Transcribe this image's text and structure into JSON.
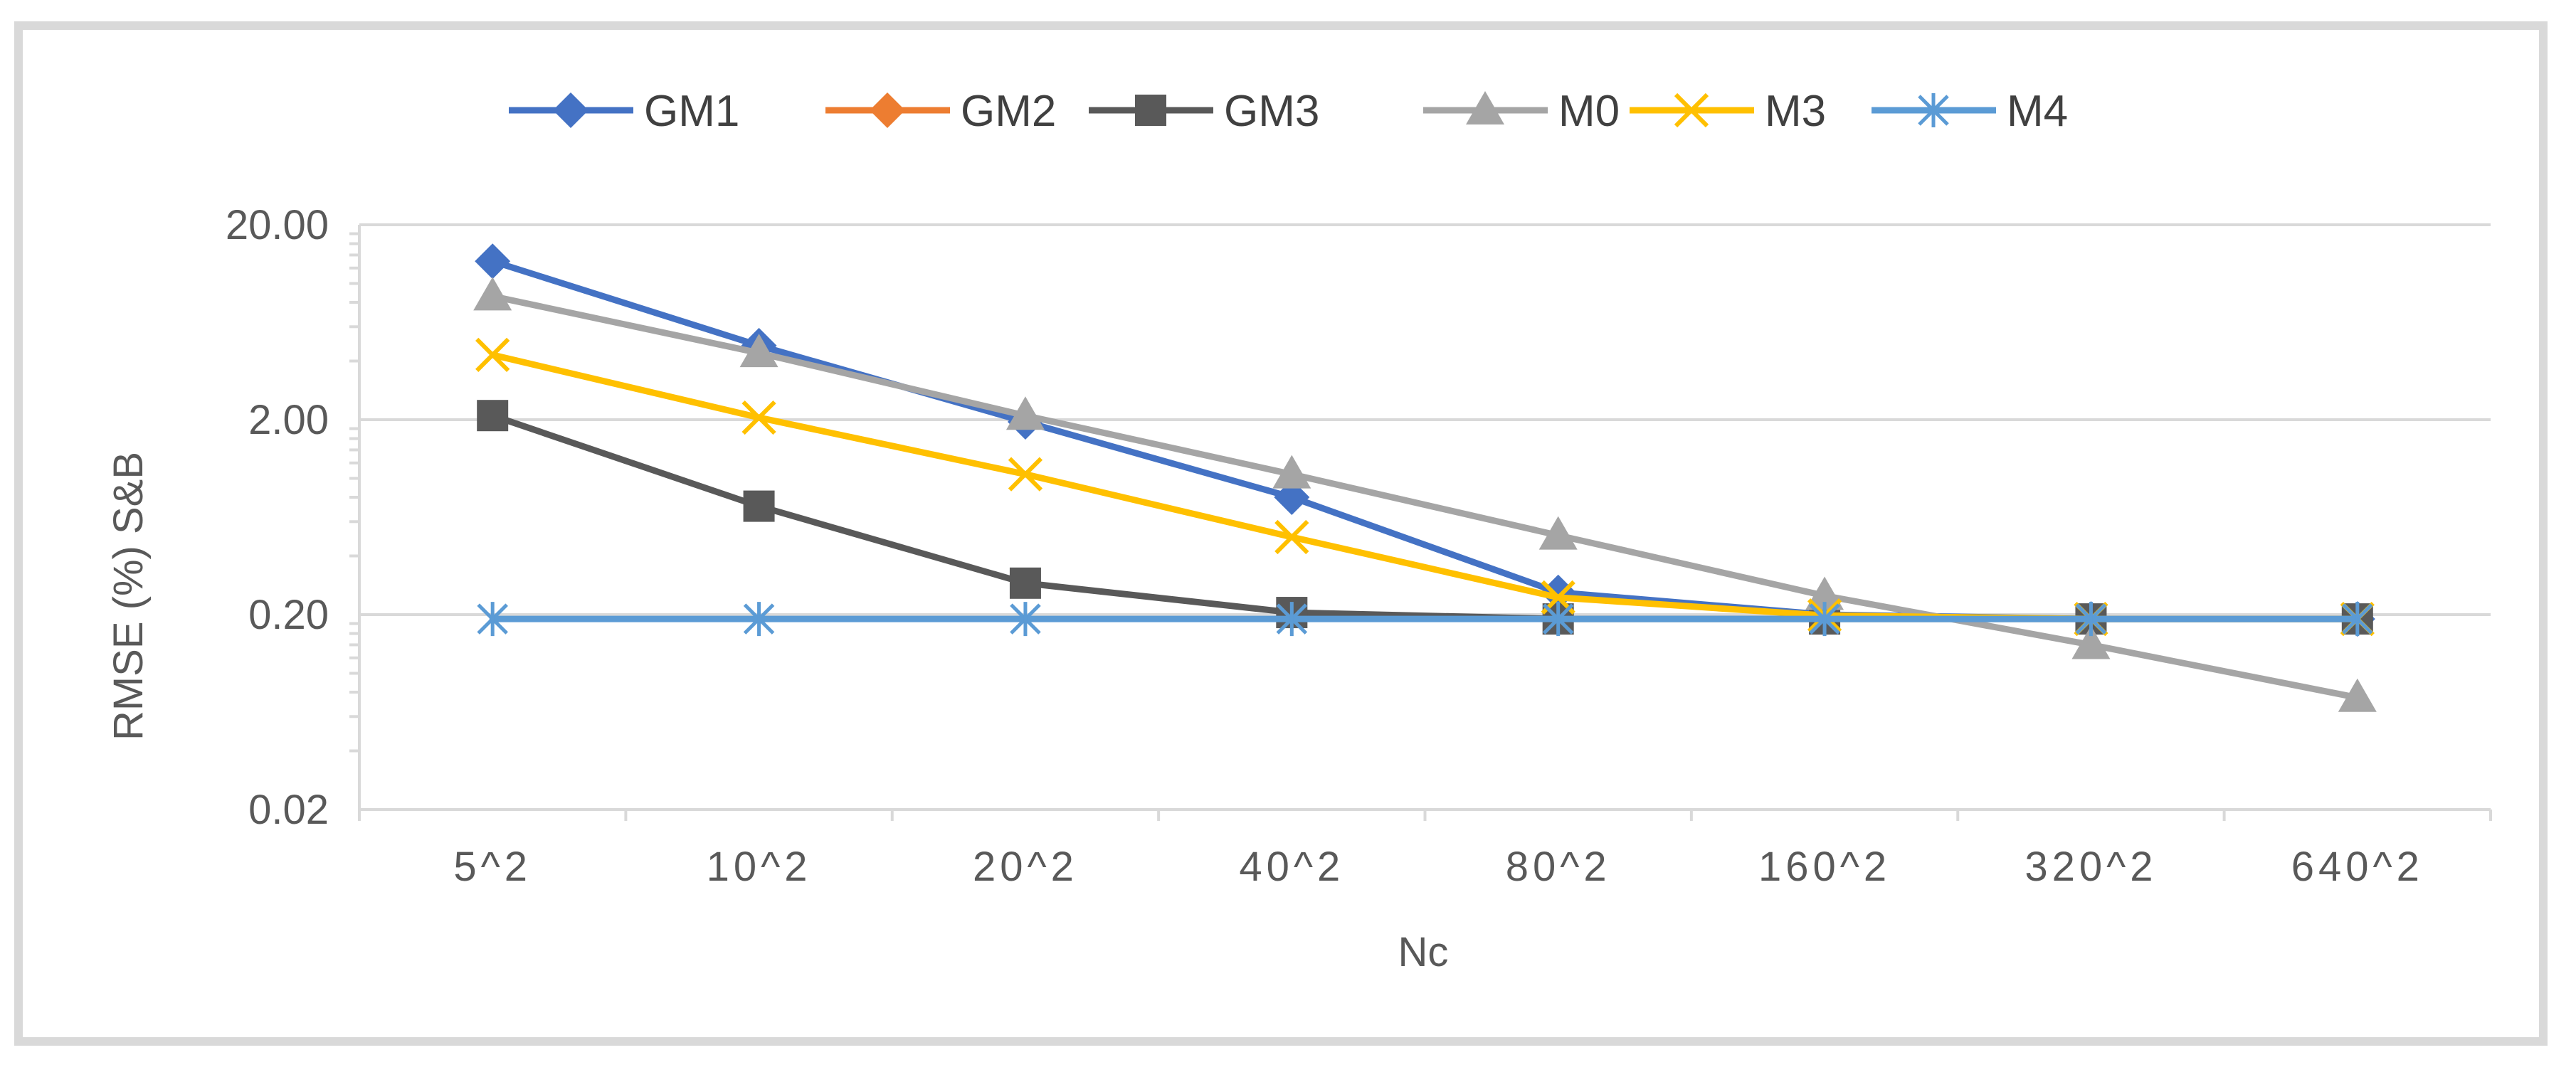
{
  "chart_data": {
    "type": "line",
    "title": "",
    "xlabel": "Nc",
    "ylabel": "RMSE (%) S&B",
    "y_scale": "log",
    "ylim": [
      0.02,
      20
    ],
    "y_ticks": [
      {
        "value": 0.02,
        "label": "0.02"
      },
      {
        "value": 0.2,
        "label": "0.20"
      },
      {
        "value": 2,
        "label": "2.00"
      },
      {
        "value": 20,
        "label": "20.00"
      }
    ],
    "categories": [
      "5^2",
      "10^2",
      "20^2",
      "40^2",
      "80^2",
      "160^2",
      "320^2",
      "640^2"
    ],
    "grid": true,
    "legend_position": "top",
    "series": [
      {
        "name": "GM1",
        "color": "#4472c4",
        "marker": "diamond",
        "values": [
          13.0,
          4.8,
          1.95,
          0.8,
          0.26,
          0.2,
          0.19,
          0.19
        ]
      },
      {
        "name": "GM2",
        "color": "#ed7d31",
        "marker": "diamond",
        "values": [
          null,
          null,
          null,
          null,
          null,
          null,
          null,
          null
        ]
      },
      {
        "name": "GM3",
        "color": "#595959",
        "marker": "square",
        "values": [
          2.1,
          0.72,
          0.29,
          0.205,
          0.19,
          0.19,
          0.19,
          0.19
        ]
      },
      {
        "name": "M0",
        "color": "#a5a5a5",
        "marker": "triangle",
        "values": [
          8.6,
          4.4,
          2.1,
          1.05,
          0.51,
          0.25,
          0.14,
          0.075
        ]
      },
      {
        "name": "M3",
        "color": "#ffc000",
        "marker": "x",
        "values": [
          4.3,
          2.05,
          1.05,
          0.5,
          0.245,
          0.198,
          0.19,
          0.19
        ]
      },
      {
        "name": "M4",
        "color": "#5b9bd5",
        "marker": "asterisk",
        "values": [
          0.19,
          0.19,
          0.19,
          0.19,
          0.19,
          0.19,
          0.19,
          0.19
        ]
      }
    ]
  }
}
